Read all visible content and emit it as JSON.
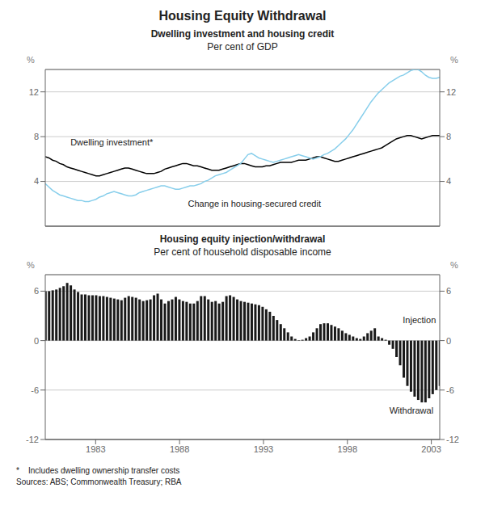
{
  "title": "Housing Equity Withdrawal",
  "footnotes": [
    "*    Includes dwelling ownership transfer costs",
    "Sources: ABS; Commonwealth Treasury; RBA"
  ],
  "chart_data": [
    {
      "type": "line",
      "title": "Dwelling investment and housing credit",
      "subtitle": "Per cent of GDP",
      "ylabel": "%",
      "y2label": "%",
      "x": [
        1980,
        1980.2156,
        1980.4312,
        1980.6468,
        1980.8624,
        1981.078,
        1981.2936,
        1981.5092,
        1981.7248,
        1981.9404,
        1982.156,
        1982.3716,
        1982.5872,
        1982.8028,
        1983.0183,
        1983.2339,
        1983.4495,
        1983.6651,
        1983.8807,
        1984.0963,
        1984.3119,
        1984.5275,
        1984.7431,
        1984.9587,
        1985.1743,
        1985.3899,
        1985.6055,
        1985.8211,
        1986.0367,
        1986.2523,
        1986.4679,
        1986.6835,
        1986.8991,
        1987.1147,
        1987.3303,
        1987.5459,
        1987.7615,
        1987.9771,
        1988.1927,
        1988.4083,
        1988.6239,
        1988.8394,
        1989.055,
        1989.2706,
        1989.4862,
        1989.7018,
        1989.9174,
        1990.133,
        1990.3486,
        1990.5642,
        1990.7798,
        1990.9954,
        1991.211,
        1991.4266,
        1991.6422,
        1991.8578,
        1992.0734,
        1992.289,
        1992.5046,
        1992.7202,
        1992.9358,
        1993.1514,
        1993.367,
        1993.5826,
        1993.7982,
        1994.0138,
        1994.2294,
        1994.445,
        1994.6606,
        1994.8761,
        1995.0917,
        1995.3073,
        1995.5229,
        1995.7385,
        1995.9541,
        1996.1697,
        1996.3853,
        1996.6009,
        1996.8165,
        1997.0321,
        1997.2477,
        1997.4633,
        1997.6789,
        1997.8945,
        1998.1101,
        1998.3257,
        1998.5413,
        1998.7569,
        1998.9725,
        1999.1881,
        1999.4037,
        1999.6193,
        1999.8349,
        2000.0505,
        2000.2661,
        2000.4817,
        2000.6972,
        2000.9128,
        2001.1284,
        2001.344,
        2001.5596,
        2001.7752,
        2001.9908,
        2002.2064,
        2002.422,
        2002.6376,
        2002.8532,
        2003.0688,
        2003.2844,
        2003.5
      ],
      "xlim": [
        1980,
        2003.5
      ],
      "ylim": [
        0,
        14
      ],
      "yticks": [
        4,
        8,
        12
      ],
      "y2lim": [
        0,
        14
      ],
      "y2ticks": [
        4,
        8,
        12
      ],
      "grid": true,
      "tick_labels": "y",
      "series": [
        {
          "color": "#000000",
          "values": [
            6.2,
            6.1,
            5.9,
            5.8,
            5.6,
            5.5,
            5.3,
            5.2,
            5.1,
            5.0,
            4.9,
            4.8,
            4.7,
            4.6,
            4.5,
            4.5,
            4.6,
            4.7,
            4.8,
            4.9,
            5.0,
            5.1,
            5.2,
            5.2,
            5.1,
            5.0,
            4.9,
            4.8,
            4.7,
            4.7,
            4.7,
            4.8,
            4.9,
            5.1,
            5.2,
            5.3,
            5.4,
            5.5,
            5.6,
            5.6,
            5.5,
            5.4,
            5.4,
            5.3,
            5.2,
            5.1,
            5.0,
            5.0,
            5.0,
            5.1,
            5.2,
            5.3,
            5.4,
            5.5,
            5.6,
            5.6,
            5.5,
            5.4,
            5.3,
            5.3,
            5.3,
            5.4,
            5.4,
            5.5,
            5.6,
            5.7,
            5.7,
            5.7,
            5.7,
            5.8,
            5.9,
            5.9,
            5.9,
            6.0,
            6.1,
            6.2,
            6.2,
            6.1,
            6.0,
            5.9,
            5.8,
            5.8,
            5.9,
            6.0,
            6.1,
            6.2,
            6.3,
            6.4,
            6.5,
            6.6,
            6.7,
            6.8,
            6.9,
            7.0,
            7.2,
            7.4,
            7.6,
            7.8,
            7.9,
            8.0,
            8.1,
            8.1,
            8.0,
            7.9,
            7.8,
            7.9,
            8.0,
            8.1,
            8.1,
            8.1
          ]
        },
        {
          "color": "#87ceeb",
          "values": [
            3.8,
            3.5,
            3.2,
            3.0,
            2.8,
            2.7,
            2.6,
            2.5,
            2.4,
            2.3,
            2.3,
            2.2,
            2.2,
            2.3,
            2.4,
            2.6,
            2.7,
            2.9,
            3.0,
            3.1,
            3.0,
            2.9,
            2.8,
            2.7,
            2.7,
            2.8,
            3.0,
            3.1,
            3.2,
            3.3,
            3.4,
            3.5,
            3.6,
            3.6,
            3.5,
            3.4,
            3.3,
            3.3,
            3.4,
            3.5,
            3.6,
            3.6,
            3.7,
            3.8,
            4.0,
            4.1,
            4.3,
            4.5,
            4.6,
            4.7,
            4.8,
            5.0,
            5.2,
            5.4,
            5.6,
            6.0,
            6.4,
            6.5,
            6.3,
            6.1,
            6.0,
            5.9,
            5.8,
            5.7,
            5.8,
            5.9,
            6.0,
            6.1,
            6.2,
            6.3,
            6.4,
            6.3,
            6.2,
            6.1,
            6.0,
            6.1,
            6.2,
            6.4,
            6.5,
            6.7,
            6.9,
            7.2,
            7.5,
            7.8,
            8.2,
            8.6,
            9.1,
            9.6,
            10.1,
            10.6,
            11.1,
            11.5,
            11.9,
            12.2,
            12.5,
            12.8,
            13.0,
            13.2,
            13.4,
            13.5,
            13.7,
            13.9,
            14.0,
            14.0,
            13.8,
            13.5,
            13.3,
            13.2,
            13.2,
            13.3
          ]
        }
      ],
      "annotations": [
        {
          "text": "Dwelling investment*",
          "x": 1981.5,
          "y": 7.5
        },
        {
          "text": "Change in housing-secured credit",
          "x": 1988.5,
          "y": 2.0
        }
      ]
    },
    {
      "type": "bar",
      "title": "Housing equity injection/withdrawal",
      "subtitle": "Per cent of household disposable income",
      "ylabel": "%",
      "y2label": "%",
      "x": [
        1980,
        1980.2156,
        1980.4312,
        1980.6468,
        1980.8624,
        1981.078,
        1981.2936,
        1981.5092,
        1981.7248,
        1981.9404,
        1982.156,
        1982.3716,
        1982.5872,
        1982.8028,
        1983.0183,
        1983.2339,
        1983.4495,
        1983.6651,
        1983.8807,
        1984.0963,
        1984.3119,
        1984.5275,
        1984.7431,
        1984.9587,
        1985.1743,
        1985.3899,
        1985.6055,
        1985.8211,
        1986.0367,
        1986.2523,
        1986.4679,
        1986.6835,
        1986.8991,
        1987.1147,
        1987.3303,
        1987.5459,
        1987.7615,
        1987.9771,
        1988.1927,
        1988.4083,
        1988.6239,
        1988.8394,
        1989.055,
        1989.2706,
        1989.4862,
        1989.7018,
        1989.9174,
        1990.133,
        1990.3486,
        1990.5642,
        1990.7798,
        1990.9954,
        1991.211,
        1991.4266,
        1991.6422,
        1991.8578,
        1992.0734,
        1992.289,
        1992.5046,
        1992.7202,
        1992.9358,
        1993.1514,
        1993.367,
        1993.5826,
        1993.7982,
        1994.0138,
        1994.2294,
        1994.445,
        1994.6606,
        1994.8761,
        1995.0917,
        1995.3073,
        1995.5229,
        1995.7385,
        1995.9541,
        1996.1697,
        1996.3853,
        1996.6009,
        1996.8165,
        1997.0321,
        1997.2477,
        1997.4633,
        1997.6789,
        1997.8945,
        1998.1101,
        1998.3257,
        1998.5413,
        1998.7569,
        1998.9725,
        1999.1881,
        1999.4037,
        1999.6193,
        1999.8349,
        2000.0505,
        2000.2661,
        2000.4817,
        2000.6972,
        2000.9128,
        2001.1284,
        2001.344,
        2001.5596,
        2001.7752,
        2001.9908,
        2002.2064,
        2002.422,
        2002.6376,
        2002.8532,
        2003.0688,
        2003.2844,
        2003.5
      ],
      "xlim": [
        1980,
        2003.5
      ],
      "xticks": [
        1983,
        1988,
        1993,
        1998,
        2003
      ],
      "ylim": [
        -12,
        8
      ],
      "yticks": [
        -12,
        -6,
        0,
        6
      ],
      "y2lim": [
        -12,
        8
      ],
      "y2ticks": [
        -12,
        -6,
        0,
        6
      ],
      "grid": true,
      "color": "#1a1a1a",
      "values": [
        6.0,
        6.0,
        6.1,
        6.2,
        6.4,
        6.6,
        7.0,
        6.7,
        6.2,
        5.9,
        5.6,
        5.6,
        5.5,
        5.5,
        5.5,
        5.4,
        5.4,
        5.3,
        5.2,
        5.1,
        5.0,
        4.9,
        5.2,
        5.4,
        5.3,
        5.2,
        5.0,
        4.8,
        4.9,
        5.0,
        5.5,
        5.7,
        5.0,
        4.5,
        4.8,
        5.0,
        5.3,
        5.0,
        4.8,
        4.7,
        4.5,
        4.5,
        4.8,
        5.4,
        5.4,
        5.0,
        4.7,
        4.8,
        4.5,
        4.7,
        5.4,
        5.5,
        5.3,
        5.0,
        4.8,
        4.7,
        4.6,
        4.5,
        4.4,
        4.3,
        4.1,
        3.8,
        3.5,
        3.0,
        2.5,
        2.0,
        1.5,
        1.0,
        0.5,
        0.2,
        0.05,
        0.1,
        0.3,
        0.5,
        1.0,
        1.5,
        2.0,
        2.1,
        2.1,
        1.9,
        1.7,
        1.5,
        1.2,
        0.9,
        0.7,
        0.5,
        0.3,
        0.2,
        0.5,
        0.9,
        1.2,
        1.5,
        0.5,
        0.3,
        0.1,
        -0.5,
        -1.0,
        -2.0,
        -3.0,
        -4.5,
        -5.5,
        -6.2,
        -6.8,
        -7.2,
        -7.5,
        -7.5,
        -7.0,
        -6.5,
        -6.0,
        -5.5
      ],
      "annotations": [
        {
          "text": "Injection",
          "x": 2001.3,
          "y": 2.5
        },
        {
          "text": "Withdrawal",
          "x": 2000.5,
          "y": -8.5
        }
      ]
    }
  ]
}
